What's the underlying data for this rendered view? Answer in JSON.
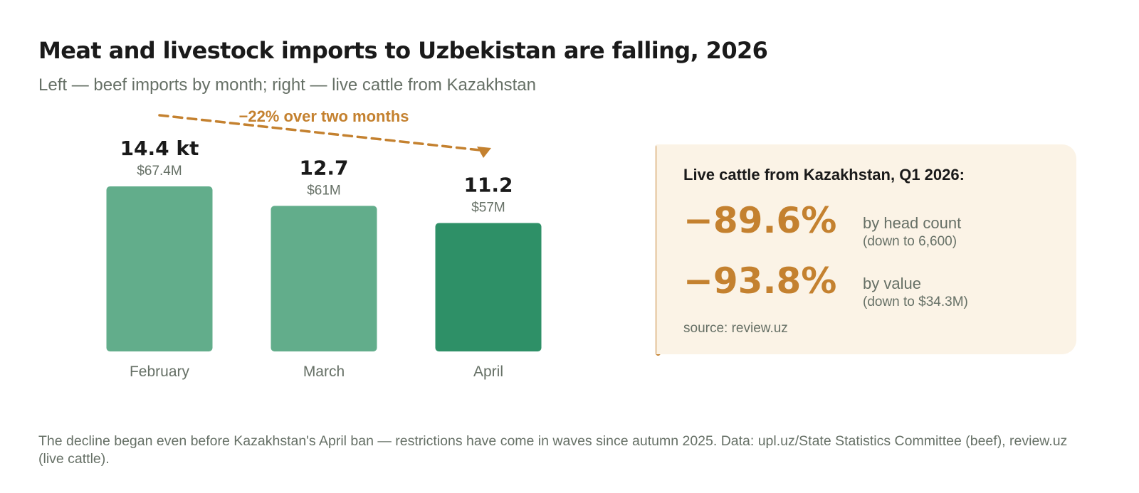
{
  "title": "Meat and livestock imports to Uzbekistan are falling, 2026",
  "subtitle": "Left — beef imports by month; right — live cattle from Kazakhstan",
  "chart_data": {
    "type": "bar",
    "title": "",
    "xlabel": "",
    "ylabel": "",
    "categories": [
      "February",
      "March",
      "April"
    ],
    "values": [
      14.4,
      12.7,
      11.2
    ],
    "value_labels": [
      "14.4 kt",
      "12.7",
      "11.2"
    ],
    "sub_labels": [
      "$67.4M",
      "$61M",
      "$57M"
    ],
    "ylim": [
      0,
      14.4
    ],
    "grid": false,
    "legend": "none",
    "highlight_index": 2,
    "colors": {
      "bar": "#62ad8b",
      "highlight": "#2e9067",
      "trend": "#c4812f"
    },
    "annotation": {
      "text": "−22% over two months",
      "from": "February",
      "to": "April"
    }
  },
  "panel": {
    "heading": "Live cattle from Kazakhstan, Q1 2026:",
    "stats": [
      {
        "value": "−89.6%",
        "label": "by head count",
        "note": "(down to 6,600)"
      },
      {
        "value": "−93.8%",
        "label": "by value",
        "note": "(down to $34.3M)"
      }
    ],
    "source": "source: review.uz"
  },
  "footnote": "The decline began even before Kazakhstan's April ban — restrictions have come in waves since autumn 2025. Data: upl.uz/State Statistics Committee (beef), review.uz (live cattle)."
}
